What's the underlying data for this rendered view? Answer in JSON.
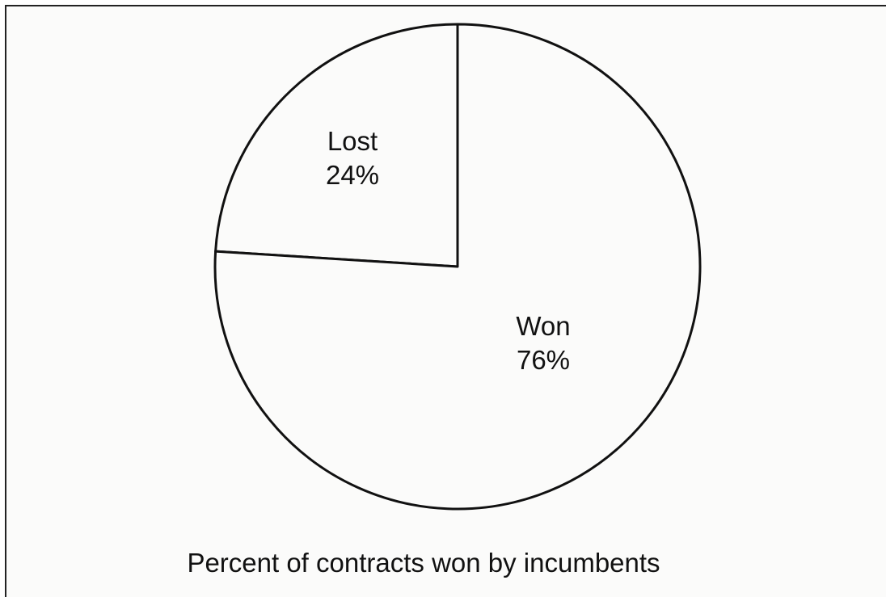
{
  "chart_data": {
    "type": "pie",
    "title": "Percent of contracts won by incumbents",
    "slices": [
      {
        "name": "Won",
        "value": 76,
        "label": "Won",
        "value_label": "76%"
      },
      {
        "name": "Lost",
        "value": 24,
        "label": "Lost",
        "value_label": "24%"
      }
    ],
    "start_slice": "Lost",
    "start_angle": "12 o'clock",
    "direction": "counter-clockwise",
    "legend": "none",
    "colors": {
      "fill": "#fbfbfa",
      "stroke": "#111111"
    }
  }
}
